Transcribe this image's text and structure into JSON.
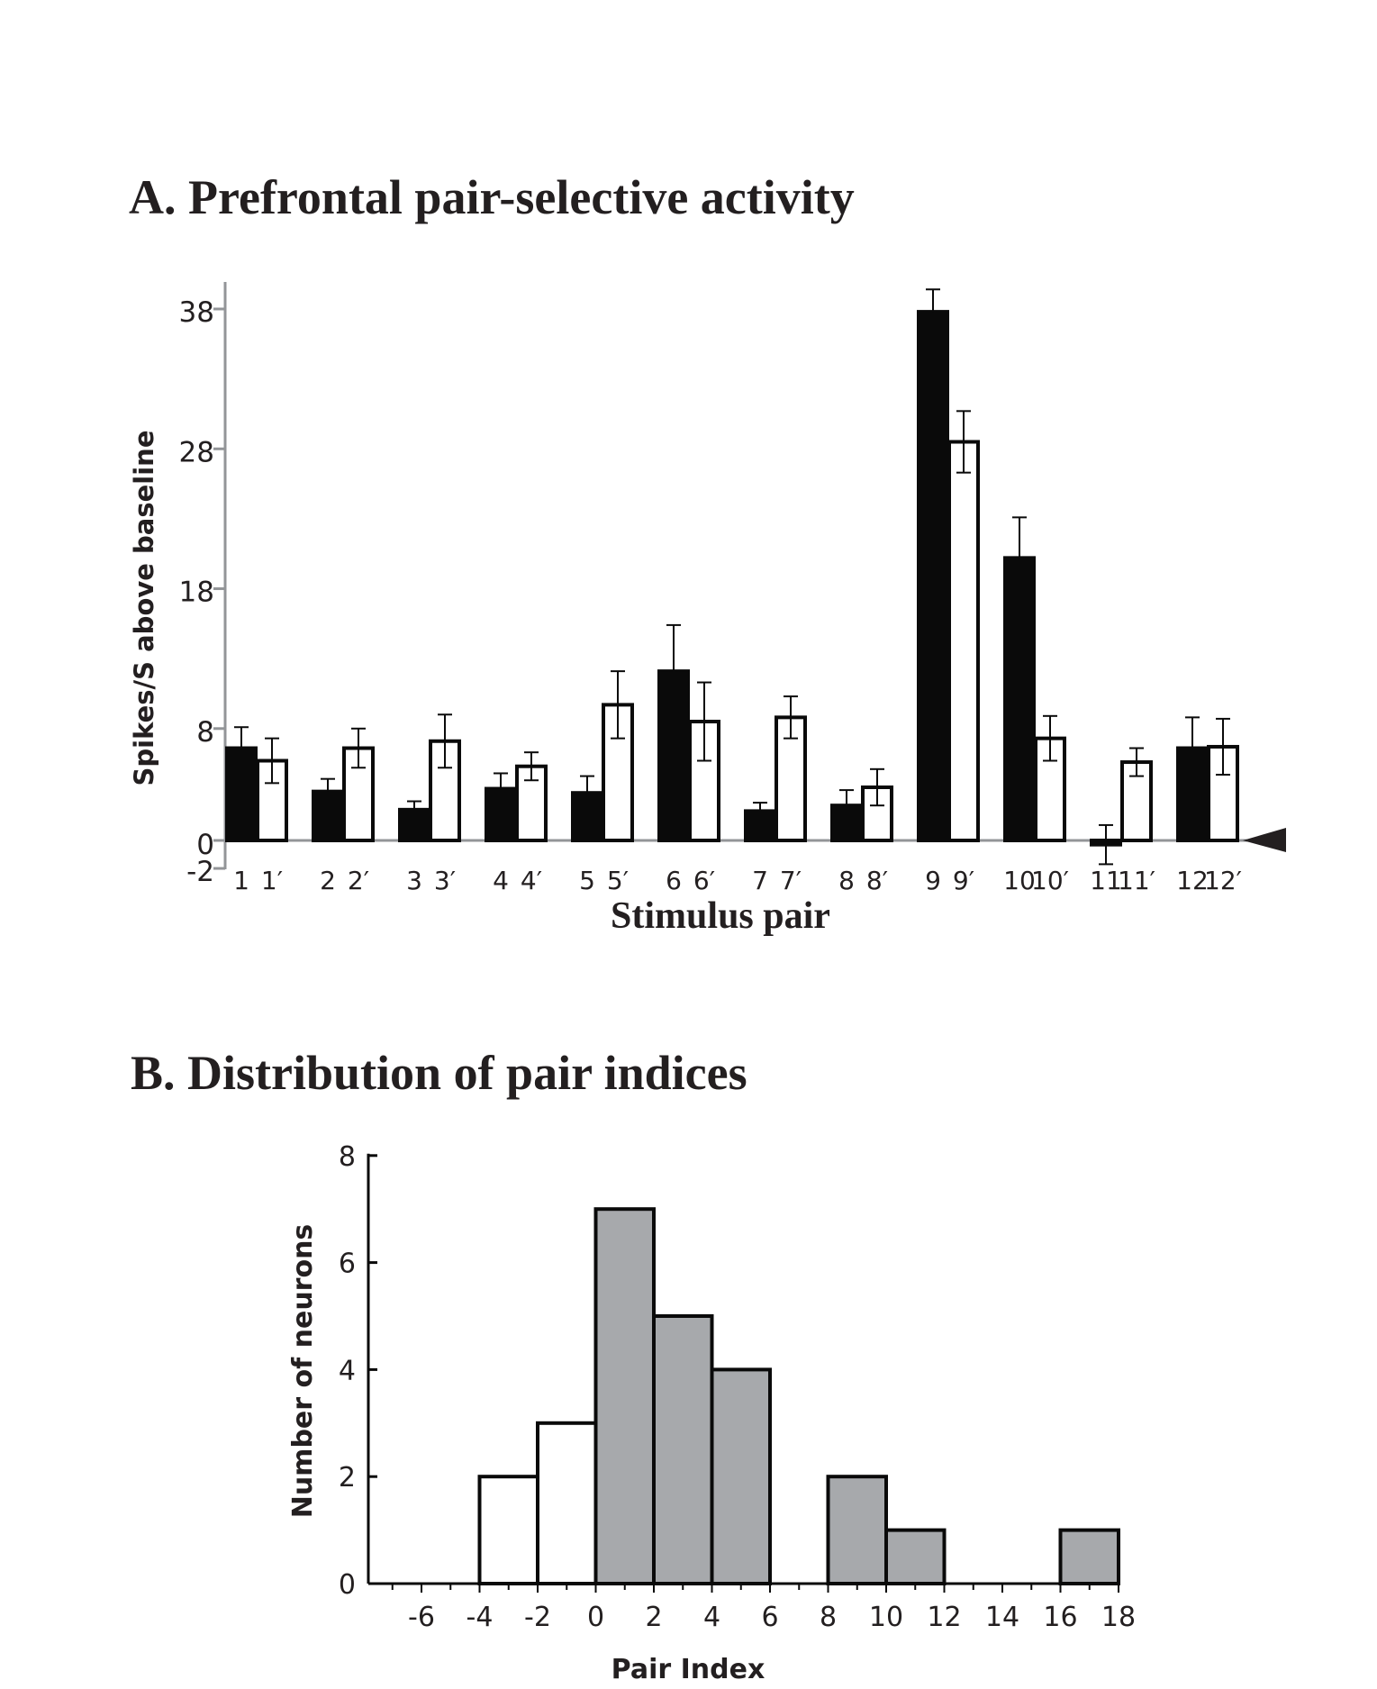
{
  "chart_data": [
    {
      "type": "bar",
      "title": "A. Prefrontal pair-selective activity",
      "xlabel": "Stimulus pair",
      "ylabel": "Spikes/S above baseline",
      "ylim": [
        -2,
        40
      ],
      "yticks": [
        38,
        28,
        18,
        8,
        0,
        -2
      ],
      "categories": [
        "1",
        "2",
        "3",
        "4",
        "5",
        "6",
        "7",
        "8",
        "9",
        "10",
        "11",
        "12"
      ],
      "series": [
        {
          "fill": "#0a0a0a",
          "tick_labels": [
            "1",
            "2",
            "3",
            "4",
            "5",
            "6",
            "7",
            "8",
            "9",
            "10",
            "11",
            "12"
          ],
          "values": [
            6.6,
            3.5,
            2.2,
            3.7,
            3.4,
            12.1,
            2.1,
            2.5,
            37.8,
            20.2,
            -0.3,
            6.6
          ],
          "errors": [
            1.5,
            0.9,
            0.6,
            1.1,
            1.2,
            3.3,
            0.6,
            1.1,
            1.6,
            2.9,
            1.4,
            2.2
          ]
        },
        {
          "fill": "#ffffff",
          "tick_labels": [
            "1′",
            "2′",
            "3′",
            "4′",
            "5′",
            "6′",
            "7′",
            "8′",
            "9′",
            "10′",
            "11′",
            "12′"
          ],
          "values": [
            5.7,
            6.6,
            7.1,
            5.3,
            9.7,
            8.5,
            8.8,
            3.8,
            28.5,
            7.3,
            5.6,
            6.7
          ],
          "errors": [
            1.6,
            1.4,
            1.9,
            1.0,
            2.4,
            2.8,
            1.5,
            1.3,
            2.2,
            1.6,
            1.0,
            2.0
          ]
        }
      ],
      "baseline_marker": "arrowhead-right"
    },
    {
      "type": "bar",
      "title": "B. Distribution of pair indices",
      "xlabel": "Pair Index",
      "ylabel": "Number of neurons",
      "xlim": [
        -8,
        18
      ],
      "ylim": [
        0,
        8
      ],
      "xticks": [
        -6,
        -4,
        -2,
        0,
        2,
        4,
        6,
        8,
        10,
        12,
        14,
        16,
        18
      ],
      "yticks": [
        0,
        2,
        4,
        6,
        8
      ],
      "bins": [
        {
          "start": -4,
          "end": -2,
          "count": 2,
          "fill": "#ffffff"
        },
        {
          "start": -2,
          "end": 0,
          "count": 3,
          "fill": "#ffffff"
        },
        {
          "start": 0,
          "end": 2,
          "count": 7,
          "fill": "#a7a9ac"
        },
        {
          "start": 2,
          "end": 4,
          "count": 5,
          "fill": "#a7a9ac"
        },
        {
          "start": 4,
          "end": 6,
          "count": 4,
          "fill": "#a7a9ac"
        },
        {
          "start": 8,
          "end": 10,
          "count": 2,
          "fill": "#a7a9ac"
        },
        {
          "start": 10,
          "end": 12,
          "count": 1,
          "fill": "#a7a9ac"
        },
        {
          "start": 16,
          "end": 18,
          "count": 1,
          "fill": "#a7a9ac"
        }
      ]
    }
  ]
}
